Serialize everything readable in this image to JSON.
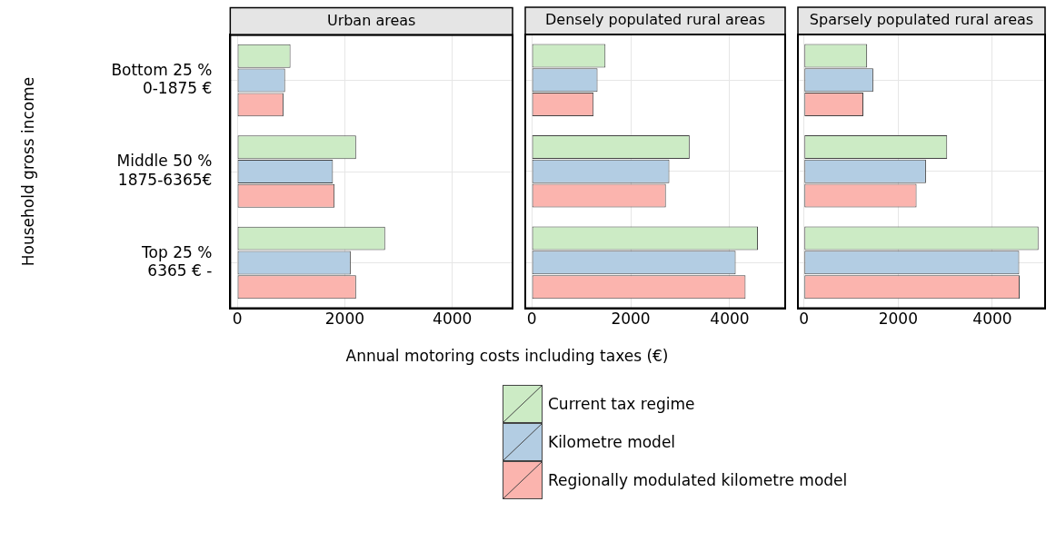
{
  "chart_data": [
    {
      "type": "bar",
      "orientation": "horizontal",
      "title": "Urban areas",
      "ylabel": "Household gross income",
      "xlabel": "Annual motoring costs including taxes (€)",
      "categories": [
        "Bottom 25 %\n0-1875 €",
        "Middle 50 %\n1875-6365€",
        "Top 25 %\n6365 € -"
      ],
      "series": [
        {
          "name": "Current tax regime",
          "color": "#ccebc5",
          "values": [
            990,
            2210,
            2750
          ]
        },
        {
          "name": "Kilometre model",
          "color": "#b3cde3",
          "values": [
            890,
            1780,
            2110
          ]
        },
        {
          "name": "Regionally modulated kilometre model",
          "color": "#fbb4ae",
          "values": [
            860,
            1810,
            2210
          ]
        }
      ],
      "xlim": [
        -130,
        5120
      ],
      "xticks": [
        0,
        2000,
        4000
      ],
      "grid": true,
      "legend": "bottom"
    },
    {
      "type": "bar",
      "orientation": "horizontal",
      "title": "Densely populated rural areas",
      "categories": [
        null,
        null,
        null
      ],
      "series": [
        {
          "color": "#ccebc5",
          "values": [
            1490,
            3190,
            4570
          ]
        },
        {
          "color": "#b3cde3",
          "values": [
            1330,
            2780,
            4120
          ]
        },
        {
          "color": "#fbb4ae",
          "values": [
            1250,
            2710,
            4320
          ]
        }
      ],
      "xlim": [
        -130,
        5120
      ],
      "xticks": [
        0,
        2000,
        4000
      ],
      "grid": true,
      "tick_labels": "x"
    },
    {
      "type": "bar",
      "orientation": "horizontal",
      "title": "Sparsely populated rural areas",
      "categories": [
        null,
        null,
        null
      ],
      "series": [
        {
          "color": "#ccebc5",
          "values": [
            1340,
            3040,
            4980
          ]
        },
        {
          "color": "#b3cde3",
          "values": [
            1470,
            2590,
            4570
          ]
        },
        {
          "color": "#fbb4ae",
          "values": [
            1260,
            2390,
            4580
          ]
        }
      ],
      "xlim": [
        -130,
        5120
      ],
      "xticks": [
        0,
        2000,
        4000
      ],
      "grid": true,
      "tick_labels": "x"
    }
  ]
}
